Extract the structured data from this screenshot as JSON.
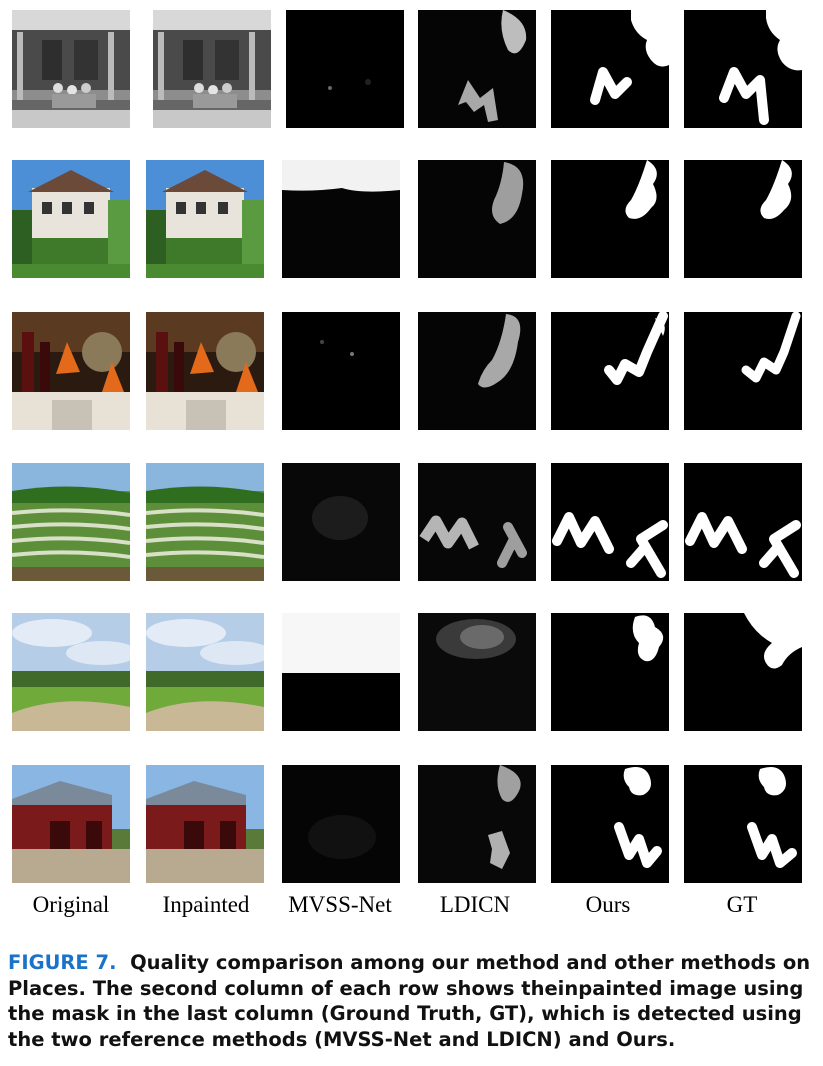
{
  "column_labels": [
    "Original",
    "Inpainted",
    "MVSS-Net",
    "LDICN",
    "Ours",
    "GT"
  ],
  "caption": {
    "figure_label": "FIGURE 7.",
    "text": "Quality comparison among our method and other methods on Places. The second column of each row shows theinpainted image using the mask in the last column (Ground Truth, GT), which is detected using the two reference methods (MVSS-Net and LDICN) and Ours."
  },
  "rows": [
    {
      "scene": "porch-photo-grayscale"
    },
    {
      "scene": "house-with-garden"
    },
    {
      "scene": "dinner-table-with-wine"
    },
    {
      "scene": "rice-terraces"
    },
    {
      "scene": "golf-course-under-sky"
    },
    {
      "scene": "red-barn"
    }
  ],
  "colors": {
    "caption_label": "#1a73c9",
    "mask_white": "#ffffff",
    "mask_gray": "#bdbdbd",
    "background": "#000000"
  }
}
